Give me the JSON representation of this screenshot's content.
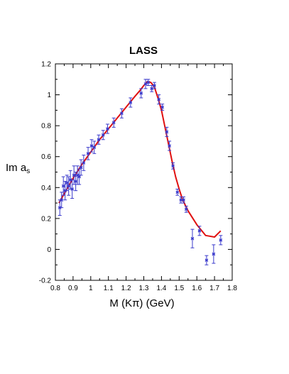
{
  "chart_data": {
    "type": "scatter",
    "title": "LASS",
    "xlabel": "M (Kπ) (GeV)",
    "ylabel_main": "Im a",
    "ylabel_sub": "s",
    "xlim": [
      0.8,
      1.8
    ],
    "ylim": [
      -0.2,
      1.2
    ],
    "x_ticks": [
      0.8,
      0.9,
      1,
      1.1,
      1.2,
      1.3,
      1.4,
      1.5,
      1.6,
      1.7,
      1.8
    ],
    "y_ticks": [
      -0.2,
      0,
      0.2,
      0.4,
      0.6,
      0.8,
      1,
      1.2
    ],
    "x_tick_labels": [
      "0.8",
      "0.9",
      "1",
      "1.1",
      "1.2",
      "1.3",
      "1.4",
      "1.5",
      "1.6",
      "1.7",
      "1.8"
    ],
    "y_tick_labels": [
      "-0.2",
      "0",
      "0.2",
      "0.4",
      "0.6",
      "0.8",
      "1",
      "1.2"
    ],
    "colors": {
      "data": "#3a3acc",
      "fit": "#e01010"
    },
    "series": [
      {
        "kind": "points_with_errors",
        "points": [
          {
            "x": 0.825,
            "y": 0.27,
            "err": 0.05
          },
          {
            "x": 0.835,
            "y": 0.32,
            "err": 0.05
          },
          {
            "x": 0.845,
            "y": 0.41,
            "err": 0.06
          },
          {
            "x": 0.855,
            "y": 0.38,
            "err": 0.06
          },
          {
            "x": 0.865,
            "y": 0.43,
            "err": 0.05
          },
          {
            "x": 0.875,
            "y": 0.41,
            "err": 0.06
          },
          {
            "x": 0.885,
            "y": 0.45,
            "err": 0.06
          },
          {
            "x": 0.895,
            "y": 0.39,
            "err": 0.06
          },
          {
            "x": 0.905,
            "y": 0.48,
            "err": 0.06
          },
          {
            "x": 0.915,
            "y": 0.44,
            "err": 0.06
          },
          {
            "x": 0.925,
            "y": 0.48,
            "err": 0.06
          },
          {
            "x": 0.935,
            "y": 0.47,
            "err": 0.05
          },
          {
            "x": 0.945,
            "y": 0.53,
            "err": 0.05
          },
          {
            "x": 0.96,
            "y": 0.56,
            "err": 0.05
          },
          {
            "x": 0.985,
            "y": 0.62,
            "err": 0.04
          },
          {
            "x": 1.005,
            "y": 0.67,
            "err": 0.04
          },
          {
            "x": 1.02,
            "y": 0.66,
            "err": 0.04
          },
          {
            "x": 1.045,
            "y": 0.71,
            "err": 0.03
          },
          {
            "x": 1.07,
            "y": 0.74,
            "err": 0.03
          },
          {
            "x": 1.095,
            "y": 0.78,
            "err": 0.03
          },
          {
            "x": 1.13,
            "y": 0.82,
            "err": 0.03
          },
          {
            "x": 1.175,
            "y": 0.88,
            "err": 0.03
          },
          {
            "x": 1.225,
            "y": 0.95,
            "err": 0.03
          },
          {
            "x": 1.285,
            "y": 1.01,
            "err": 0.03
          },
          {
            "x": 1.31,
            "y": 1.07,
            "err": 0.03
          },
          {
            "x": 1.325,
            "y": 1.08,
            "err": 0.02
          },
          {
            "x": 1.345,
            "y": 1.04,
            "err": 0.02
          },
          {
            "x": 1.36,
            "y": 1.06,
            "err": 0.02
          },
          {
            "x": 1.385,
            "y": 0.97,
            "err": 0.03
          },
          {
            "x": 1.405,
            "y": 0.92,
            "err": 0.02
          },
          {
            "x": 1.43,
            "y": 0.76,
            "err": 0.03
          },
          {
            "x": 1.445,
            "y": 0.67,
            "err": 0.03
          },
          {
            "x": 1.465,
            "y": 0.54,
            "err": 0.02
          },
          {
            "x": 1.49,
            "y": 0.37,
            "err": 0.02
          },
          {
            "x": 1.51,
            "y": 0.32,
            "err": 0.02
          },
          {
            "x": 1.525,
            "y": 0.32,
            "err": 0.02
          },
          {
            "x": 1.54,
            "y": 0.26,
            "err": 0.02
          },
          {
            "x": 1.575,
            "y": 0.07,
            "err": 0.06
          },
          {
            "x": 1.615,
            "y": 0.12,
            "err": 0.03
          },
          {
            "x": 1.655,
            "y": -0.07,
            "err": 0.03
          },
          {
            "x": 1.695,
            "y": -0.03,
            "err": 0.06
          },
          {
            "x": 1.735,
            "y": 0.06,
            "err": 0.03
          }
        ]
      },
      {
        "kind": "fit_curve",
        "x": [
          0.82,
          0.85,
          0.9,
          0.95,
          1.0,
          1.05,
          1.1,
          1.15,
          1.2,
          1.25,
          1.28,
          1.3,
          1.32,
          1.34,
          1.36,
          1.38,
          1.4,
          1.42,
          1.44,
          1.46,
          1.48,
          1.5,
          1.52,
          1.55,
          1.6,
          1.65,
          1.7,
          1.735
        ],
        "y": [
          0.3,
          0.36,
          0.46,
          0.55,
          0.63,
          0.71,
          0.78,
          0.85,
          0.92,
          0.99,
          1.03,
          1.06,
          1.085,
          1.08,
          1.05,
          0.98,
          0.9,
          0.79,
          0.68,
          0.57,
          0.47,
          0.39,
          0.32,
          0.25,
          0.16,
          0.09,
          0.08,
          0.12
        ]
      }
    ]
  }
}
